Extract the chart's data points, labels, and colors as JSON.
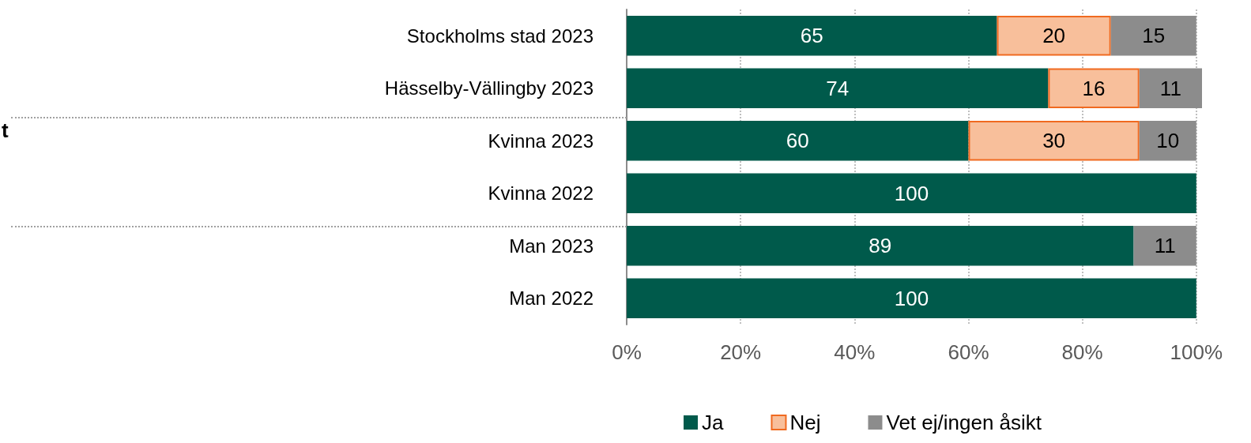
{
  "chart_data": {
    "type": "bar",
    "orientation": "horizontal",
    "stacked": true,
    "categories": [
      "Stockholms stad 2023",
      "Hässelby-Vällingby 2023",
      "Kvinna 2023",
      "Kvinna 2022",
      "Man 2023",
      "Man 2022"
    ],
    "series": [
      {
        "name": "Ja",
        "color": "#005a4b",
        "values": [
          65,
          74,
          60,
          100,
          89,
          100
        ]
      },
      {
        "name": "Nej",
        "color": "#f8bf9b",
        "values": [
          20,
          16,
          30,
          null,
          null,
          null
        ]
      },
      {
        "name": "Vet ej/ingen åsikt",
        "color": "#8c8c8c",
        "values": [
          15,
          11,
          10,
          null,
          11,
          null
        ]
      }
    ],
    "xlim": [
      0,
      101
    ],
    "xticks": [
      {
        "value": 0,
        "label": "0%"
      },
      {
        "value": 20,
        "label": "20%"
      },
      {
        "value": 40,
        "label": "40%"
      },
      {
        "value": 60,
        "label": "60%"
      },
      {
        "value": 80,
        "label": "80%"
      },
      {
        "value": 100,
        "label": "100%"
      }
    ],
    "data_labels": true,
    "grid": "x",
    "legend": "bottom",
    "annotations": [
      "t"
    ]
  }
}
